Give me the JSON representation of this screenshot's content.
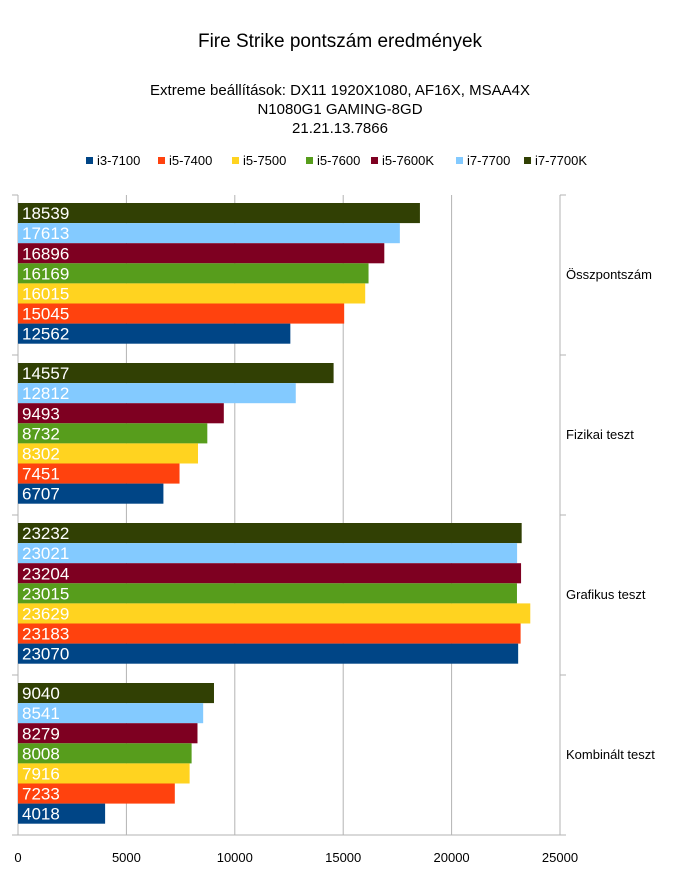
{
  "chart_data": {
    "type": "bar",
    "orientation": "horizontal",
    "title": "Fire Strike pontszám eredmények",
    "subtitle_lines": [
      "Extreme beállítások: DX11 1920X1080, AF16X, MSAA4X",
      "N1080G1 GAMING-8GD",
      "21.21.13.7866"
    ],
    "categories": [
      "Összpontszám",
      "Fizikai teszt",
      "Grafikus teszt",
      "Kombinált teszt"
    ],
    "series": [
      {
        "name": "i3-7100",
        "color": "#004586",
        "values": [
          12562,
          6707,
          23070,
          4018
        ]
      },
      {
        "name": "i5-7400",
        "color": "#ff420e",
        "values": [
          15045,
          7451,
          23183,
          7233
        ]
      },
      {
        "name": "i5-7500",
        "color": "#ffd320",
        "values": [
          16015,
          8302,
          23629,
          7916
        ]
      },
      {
        "name": "i5-7600",
        "color": "#579d1c",
        "values": [
          16169,
          8732,
          23015,
          8008
        ]
      },
      {
        "name": "i5-7600K",
        "color": "#7e0021",
        "values": [
          16896,
          9493,
          23204,
          8279
        ]
      },
      {
        "name": "i7-7700",
        "color": "#83caff",
        "values": [
          17613,
          12812,
          23021,
          8541
        ]
      },
      {
        "name": "i7-7700K",
        "color": "#314004",
        "values": [
          18539,
          14557,
          23232,
          9040
        ]
      }
    ],
    "xlim": [
      0,
      25000
    ],
    "xticks": [
      "0",
      "5000",
      "10000",
      "15000",
      "20000",
      "25000"
    ],
    "grid": true,
    "legend_position": "top"
  }
}
